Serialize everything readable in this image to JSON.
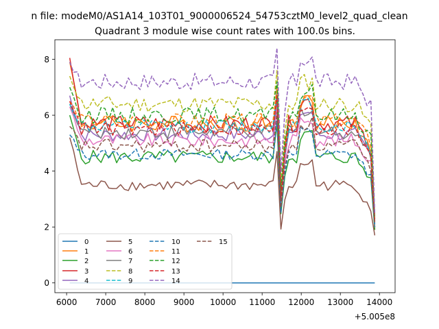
{
  "chart_data": {
    "type": "line",
    "suptitle": "n file: modeM0/AS1A14_103T01_9000006524_54753cztM0_level2_quad_clean",
    "title": "Quadrant 3 module wise count rates with 100.0s bins.",
    "xlabel": "",
    "ylabel": "",
    "x_offset_label": "+5.005e8",
    "xlim": [
      5700,
      14400
    ],
    "ylim": [
      -0.35,
      8.7
    ],
    "xticks": [
      6000,
      7000,
      8000,
      9000,
      10000,
      11000,
      12000,
      13000,
      14000
    ],
    "xtick_labels": [
      "6000",
      "7000",
      "8000",
      "9000",
      "10000",
      "11000",
      "12000",
      "13000",
      "14000"
    ],
    "yticks": [
      0,
      2,
      4,
      6,
      8
    ],
    "ytick_labels": [
      "0",
      "2",
      "4",
      "6",
      "8"
    ],
    "x_start": 6080,
    "x_step": 100,
    "grid": false,
    "legend_position": "lower-left",
    "legend_columns": 4,
    "series": [
      {
        "name": "0",
        "color": "#1f77b4",
        "dash": false,
        "level": 0.0,
        "start": 0.0,
        "end": 0.0,
        "noise": 0.0
      },
      {
        "name": "1",
        "color": "#ff7f0e",
        "dash": false,
        "level": 5.7,
        "start": 7.9,
        "end": 1.9,
        "noise": 0.3
      },
      {
        "name": "2",
        "color": "#2ca02c",
        "dash": false,
        "level": 4.5,
        "start": 6.0,
        "end": 1.9,
        "noise": 0.25
      },
      {
        "name": "3",
        "color": "#d62728",
        "dash": false,
        "level": 5.7,
        "start": 8.05,
        "end": 2.0,
        "noise": 0.3
      },
      {
        "name": "4",
        "color": "#9467bd",
        "dash": false,
        "level": 5.3,
        "start": 6.7,
        "end": 2.2,
        "noise": 0.25
      },
      {
        "name": "5",
        "color": "#8c564b",
        "dash": false,
        "level": 3.5,
        "start": 5.2,
        "end": 1.7,
        "noise": 0.2
      },
      {
        "name": "6",
        "color": "#e377c2",
        "dash": false,
        "level": 5.1,
        "start": 6.3,
        "end": 2.0,
        "noise": 0.25
      },
      {
        "name": "7",
        "color": "#7f7f7f",
        "dash": false,
        "level": 5.4,
        "start": 6.4,
        "end": 2.0,
        "noise": 0.25
      },
      {
        "name": "8",
        "color": "#bcbd22",
        "dash": true,
        "level": 6.4,
        "start": 7.4,
        "end": 2.3,
        "noise": 0.3
      },
      {
        "name": "9",
        "color": "#17becf",
        "dash": true,
        "level": 5.6,
        "start": 6.4,
        "end": 2.1,
        "noise": 0.25
      },
      {
        "name": "10",
        "color": "#1f77b4",
        "dash": true,
        "level": 4.6,
        "start": 5.3,
        "end": 2.0,
        "noise": 0.2
      },
      {
        "name": "11",
        "color": "#ff7f0e",
        "dash": true,
        "level": 5.8,
        "start": 6.5,
        "end": 2.2,
        "noise": 0.25
      },
      {
        "name": "12",
        "color": "#2ca02c",
        "dash": true,
        "level": 6.0,
        "start": 7.0,
        "end": 2.3,
        "noise": 0.3
      },
      {
        "name": "13",
        "color": "#d62728",
        "dash": true,
        "level": 5.5,
        "start": 6.5,
        "end": 2.2,
        "noise": 0.25
      },
      {
        "name": "14",
        "color": "#9467bd",
        "dash": true,
        "level": 7.2,
        "start": 7.9,
        "end": 2.5,
        "noise": 0.3
      },
      {
        "name": "15",
        "color": "#8c564b",
        "dash": true,
        "level": 4.9,
        "start": 5.6,
        "end": 2.1,
        "noise": 0.25
      }
    ]
  }
}
